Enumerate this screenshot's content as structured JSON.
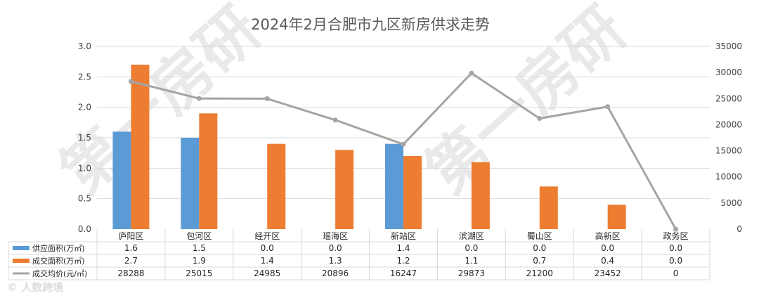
{
  "watermark": {
    "text": "第一房研",
    "credit": "© 人数跨境"
  },
  "chart_data": {
    "type": "bar",
    "title": "2024年2月合肥市九区新房供求走势",
    "categories": [
      "庐阳区",
      "包河区",
      "经开区",
      "瑶海区",
      "新站区",
      "滨湖区",
      "蜀山区",
      "高新区",
      "政务区"
    ],
    "y_left": {
      "range": [
        0,
        3.0
      ],
      "ticks": [
        "0.0",
        "0.5",
        "1.0",
        "1.5",
        "2.0",
        "2.5",
        "3.0"
      ]
    },
    "y_right": {
      "range": [
        0,
        35000
      ],
      "ticks": [
        "0",
        "5000",
        "10000",
        "15000",
        "20000",
        "25000",
        "30000",
        "35000"
      ]
    },
    "grid": true,
    "series": [
      {
        "name": "供应面积(万㎡)",
        "type": "bar",
        "axis": "left",
        "color": "#5b9bd5",
        "values": [
          1.6,
          1.5,
          0.0,
          0.0,
          1.4,
          0.0,
          0.0,
          0.0,
          0.0
        ],
        "labels": [
          "1.6",
          "1.5",
          "0.0",
          "0.0",
          "1.4",
          "0.0",
          "0.0",
          "0.0",
          "0.0"
        ]
      },
      {
        "name": "成交面积(万㎡)",
        "type": "bar",
        "axis": "left",
        "color": "#ed7d31",
        "values": [
          2.7,
          1.9,
          1.4,
          1.3,
          1.2,
          1.1,
          0.7,
          0.4,
          0.0
        ],
        "labels": [
          "2.7",
          "1.9",
          "1.4",
          "1.3",
          "1.2",
          "1.1",
          "0.7",
          "0.4",
          "0.0"
        ]
      },
      {
        "name": "成交均价(元/㎡)",
        "type": "line",
        "axis": "right",
        "color": "#a5a5a5",
        "values": [
          28288,
          25015,
          24985,
          20896,
          16247,
          29873,
          21200,
          23452,
          0
        ],
        "labels": [
          "28288",
          "25015",
          "24985",
          "20896",
          "16247",
          "29873",
          "21200",
          "23452",
          "0"
        ]
      }
    ]
  }
}
